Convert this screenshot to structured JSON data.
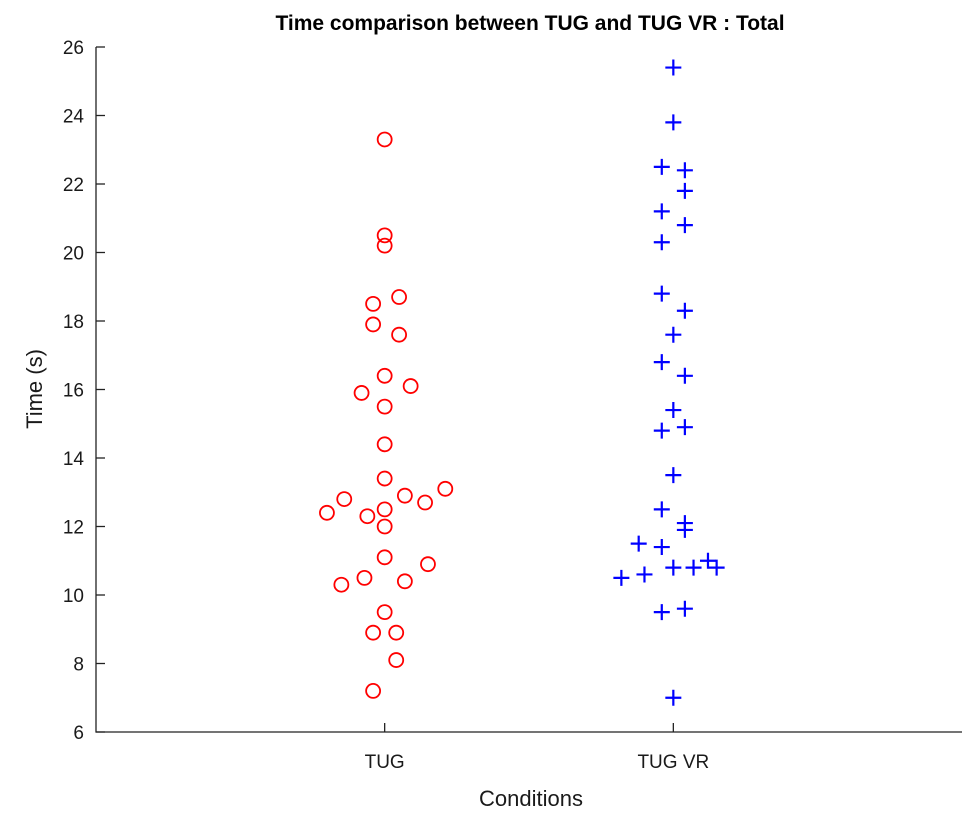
{
  "chart_data": {
    "type": "scatter",
    "title": "Time comparison between TUG and TUG VR : Total",
    "xlabel": "Conditions",
    "ylabel": "Time (s)",
    "ylim": [
      6,
      26
    ],
    "yticks": [
      6,
      8,
      10,
      12,
      14,
      16,
      18,
      20,
      22,
      24,
      26
    ],
    "categories": [
      "TUG",
      "TUG VR"
    ],
    "xlim": [
      0,
      3
    ],
    "grid": false,
    "series": [
      {
        "category": "TUG",
        "marker": "circle",
        "color": "#ff0000",
        "points": [
          {
            "x": 1.0,
            "y": 23.3
          },
          {
            "x": 1.0,
            "y": 20.5
          },
          {
            "x": 1.0,
            "y": 20.2
          },
          {
            "x": 0.96,
            "y": 18.5
          },
          {
            "x": 1.05,
            "y": 18.7
          },
          {
            "x": 0.96,
            "y": 17.9
          },
          {
            "x": 1.05,
            "y": 17.6
          },
          {
            "x": 1.0,
            "y": 16.4
          },
          {
            "x": 0.92,
            "y": 15.9
          },
          {
            "x": 1.09,
            "y": 16.1
          },
          {
            "x": 1.0,
            "y": 15.5
          },
          {
            "x": 1.0,
            "y": 14.4
          },
          {
            "x": 1.0,
            "y": 13.4
          },
          {
            "x": 0.8,
            "y": 12.4
          },
          {
            "x": 0.86,
            "y": 12.8
          },
          {
            "x": 0.94,
            "y": 12.3
          },
          {
            "x": 1.0,
            "y": 12.5
          },
          {
            "x": 1.0,
            "y": 12.0
          },
          {
            "x": 1.07,
            "y": 12.9
          },
          {
            "x": 1.14,
            "y": 12.7
          },
          {
            "x": 1.21,
            "y": 13.1
          },
          {
            "x": 1.0,
            "y": 11.1
          },
          {
            "x": 0.85,
            "y": 10.3
          },
          {
            "x": 0.93,
            "y": 10.5
          },
          {
            "x": 1.07,
            "y": 10.4
          },
          {
            "x": 1.15,
            "y": 10.9
          },
          {
            "x": 1.0,
            "y": 9.5
          },
          {
            "x": 0.96,
            "y": 8.9
          },
          {
            "x": 1.04,
            "y": 8.9
          },
          {
            "x": 1.04,
            "y": 8.1
          },
          {
            "x": 0.96,
            "y": 7.2
          }
        ]
      },
      {
        "category": "TUG VR",
        "marker": "plus",
        "color": "#0000ff",
        "points": [
          {
            "x": 2.0,
            "y": 25.4
          },
          {
            "x": 2.0,
            "y": 23.8
          },
          {
            "x": 1.96,
            "y": 22.5
          },
          {
            "x": 2.04,
            "y": 22.4
          },
          {
            "x": 2.04,
            "y": 21.8
          },
          {
            "x": 1.96,
            "y": 21.2
          },
          {
            "x": 2.04,
            "y": 20.8
          },
          {
            "x": 1.96,
            "y": 20.3
          },
          {
            "x": 1.96,
            "y": 18.8
          },
          {
            "x": 2.04,
            "y": 18.3
          },
          {
            "x": 2.0,
            "y": 17.6
          },
          {
            "x": 1.96,
            "y": 16.8
          },
          {
            "x": 2.04,
            "y": 16.4
          },
          {
            "x": 2.0,
            "y": 15.4
          },
          {
            "x": 1.96,
            "y": 14.8
          },
          {
            "x": 2.04,
            "y": 14.9
          },
          {
            "x": 2.0,
            "y": 13.5
          },
          {
            "x": 1.96,
            "y": 12.5
          },
          {
            "x": 2.04,
            "y": 12.1
          },
          {
            "x": 2.04,
            "y": 11.9
          },
          {
            "x": 1.88,
            "y": 11.5
          },
          {
            "x": 1.96,
            "y": 11.4
          },
          {
            "x": 1.82,
            "y": 10.5
          },
          {
            "x": 1.9,
            "y": 10.6
          },
          {
            "x": 2.0,
            "y": 10.8
          },
          {
            "x": 2.07,
            "y": 10.8
          },
          {
            "x": 2.12,
            "y": 11.0
          },
          {
            "x": 2.15,
            "y": 10.8
          },
          {
            "x": 1.96,
            "y": 9.5
          },
          {
            "x": 2.04,
            "y": 9.6
          },
          {
            "x": 2.0,
            "y": 7.0
          }
        ]
      }
    ]
  }
}
